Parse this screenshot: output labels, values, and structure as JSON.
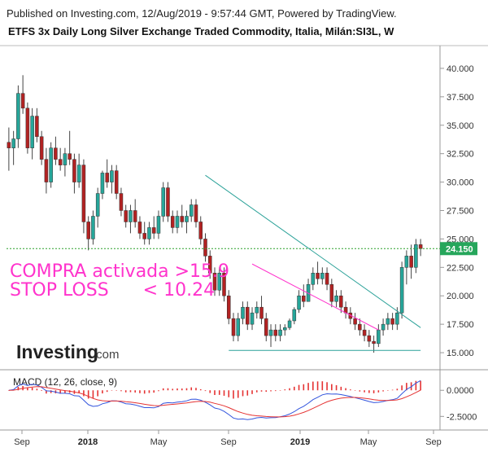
{
  "header": {
    "published": "Published on Investing.com, 12/Aug/2019 - 9:57:44 GMT, Powered by TradingView.",
    "title": "ETFS 3x Daily Long Silver Exchange Traded Commodity, Italia, Milán:SI3L, W"
  },
  "logo": {
    "main": "Investing",
    "suffix": ".com"
  },
  "annotations": {
    "buy": "COMPRA activada >15.9",
    "stop": "STOP LOSS      < 10.24"
  },
  "price_label": "24.150",
  "colors": {
    "up": "#26a69a",
    "down": "#b22222",
    "trend": "#2aa198",
    "pink": "#ff33cc",
    "dotted": "#2ca02c",
    "macd": "#3355dd",
    "signal": "#e53333",
    "hist": "#e53333"
  },
  "chart_data": [
    {
      "type": "candlestick",
      "ylim": [
        13.5,
        42.0
      ],
      "x_ticks": [
        "Sep",
        "2018",
        "May",
        "Sep",
        "2019",
        "May",
        "Sep"
      ],
      "y_ticks": [
        "15.000",
        "17.500",
        "20.000",
        "22.500",
        "25.000",
        "27.500",
        "30.000",
        "32.500",
        "35.000",
        "37.500",
        "40.000"
      ],
      "y_tick_values": [
        15,
        17.5,
        20,
        22.5,
        25,
        27.5,
        30,
        32.5,
        35,
        37.5,
        40
      ],
      "last_price": 24.15,
      "candles": [
        [
          33.5,
          34.8,
          31.0,
          33.0
        ],
        [
          33.0,
          34.5,
          31.5,
          33.8
        ],
        [
          33.8,
          38.5,
          33.0,
          37.8
        ],
        [
          37.8,
          39.4,
          36.0,
          36.5
        ],
        [
          36.5,
          37.0,
          32.5,
          33.0
        ],
        [
          33.0,
          36.5,
          32.0,
          35.8
        ],
        [
          35.8,
          36.5,
          33.5,
          34.0
        ],
        [
          34.0,
          34.5,
          31.5,
          32.0
        ],
        [
          32.0,
          33.0,
          29.0,
          30.0
        ],
        [
          30.0,
          33.5,
          29.5,
          33.0
        ],
        [
          33.0,
          34.0,
          31.5,
          32.0
        ],
        [
          32.0,
          33.0,
          31.0,
          31.5
        ],
        [
          31.5,
          33.0,
          30.5,
          32.5
        ],
        [
          32.5,
          34.5,
          31.5,
          32.0
        ],
        [
          32.0,
          32.5,
          29.0,
          30.0
        ],
        [
          30.0,
          32.5,
          29.5,
          31.5
        ],
        [
          31.5,
          32.0,
          25.5,
          26.5
        ],
        [
          26.5,
          27.0,
          24.0,
          25.0
        ],
        [
          25.0,
          27.5,
          24.5,
          27.0
        ],
        [
          27.0,
          29.5,
          26.0,
          29.0
        ],
        [
          29.0,
          31.0,
          28.5,
          30.8
        ],
        [
          30.8,
          32.0,
          29.5,
          30.0
        ],
        [
          30.0,
          31.5,
          29.0,
          31.0
        ],
        [
          31.0,
          31.5,
          28.5,
          29.0
        ],
        [
          29.0,
          29.5,
          27.0,
          27.5
        ],
        [
          27.5,
          28.0,
          26.0,
          26.5
        ],
        [
          26.5,
          28.0,
          25.5,
          27.5
        ],
        [
          27.5,
          28.5,
          26.0,
          26.5
        ],
        [
          26.5,
          27.0,
          25.0,
          25.5
        ],
        [
          25.5,
          26.5,
          24.5,
          25.0
        ],
        [
          25.0,
          26.5,
          24.5,
          26.0
        ],
        [
          26.0,
          27.0,
          25.0,
          25.5
        ],
        [
          25.5,
          27.5,
          25.0,
          27.0
        ],
        [
          27.0,
          30.0,
          26.5,
          29.5
        ],
        [
          29.5,
          30.0,
          26.5,
          27.0
        ],
        [
          27.0,
          27.5,
          25.5,
          26.0
        ],
        [
          26.0,
          27.5,
          25.5,
          27.0
        ],
        [
          27.0,
          28.0,
          26.0,
          26.5
        ],
        [
          26.5,
          27.5,
          25.5,
          27.0
        ],
        [
          27.0,
          28.5,
          26.5,
          28.0
        ],
        [
          28.0,
          28.5,
          26.0,
          26.5
        ],
        [
          26.5,
          27.0,
          24.5,
          25.0
        ],
        [
          25.0,
          25.5,
          23.0,
          23.5
        ],
        [
          23.5,
          24.0,
          21.5,
          22.0
        ],
        [
          22.0,
          22.5,
          20.0,
          20.5
        ],
        [
          20.5,
          22.5,
          20.0,
          22.0
        ],
        [
          22.0,
          22.5,
          19.5,
          20.0
        ],
        [
          20.0,
          20.5,
          17.5,
          18.0
        ],
        [
          18.0,
          18.5,
          16.0,
          16.5
        ],
        [
          16.5,
          18.5,
          16.0,
          18.0
        ],
        [
          18.0,
          19.5,
          17.5,
          19.0
        ],
        [
          19.0,
          19.5,
          17.0,
          17.5
        ],
        [
          17.5,
          19.0,
          17.0,
          18.5
        ],
        [
          18.5,
          19.5,
          18.0,
          19.0
        ],
        [
          19.0,
          20.0,
          17.5,
          18.0
        ],
        [
          18.0,
          18.5,
          16.0,
          16.5
        ],
        [
          16.5,
          17.5,
          15.5,
          17.0
        ],
        [
          17.0,
          17.5,
          16.0,
          16.5
        ],
        [
          16.5,
          17.5,
          16.0,
          17.0
        ],
        [
          17.0,
          17.5,
          16.5,
          17.2
        ],
        [
          17.2,
          18.0,
          17.0,
          17.8
        ],
        [
          17.8,
          19.0,
          17.5,
          18.8
        ],
        [
          18.8,
          20.5,
          18.5,
          20.0
        ],
        [
          20.0,
          21.0,
          19.0,
          19.5
        ],
        [
          19.5,
          21.5,
          19.5,
          21.0
        ],
        [
          21.0,
          22.5,
          20.5,
          22.0
        ],
        [
          22.0,
          23.0,
          21.0,
          21.5
        ],
        [
          21.5,
          22.5,
          21.0,
          22.0
        ],
        [
          22.0,
          22.5,
          20.5,
          21.0
        ],
        [
          21.0,
          21.5,
          19.0,
          19.5
        ],
        [
          19.5,
          20.5,
          19.0,
          20.0
        ],
        [
          20.0,
          20.5,
          18.5,
          19.0
        ],
        [
          19.0,
          19.5,
          18.0,
          18.5
        ],
        [
          18.5,
          19.0,
          17.5,
          18.0
        ],
        [
          18.0,
          18.5,
          17.0,
          17.5
        ],
        [
          17.5,
          18.0,
          16.5,
          17.0
        ],
        [
          17.0,
          17.5,
          16.0,
          16.5
        ],
        [
          16.5,
          17.0,
          15.5,
          16.0
        ],
        [
          16.0,
          16.5,
          15.0,
          15.8
        ],
        [
          15.8,
          17.5,
          15.5,
          17.0
        ],
        [
          17.0,
          18.0,
          16.5,
          17.5
        ],
        [
          17.5,
          18.5,
          17.0,
          18.0
        ],
        [
          18.0,
          18.5,
          17.0,
          17.5
        ],
        [
          17.5,
          19.0,
          17.0,
          18.5
        ],
        [
          18.5,
          23.0,
          18.0,
          22.5
        ],
        [
          22.5,
          24.0,
          21.0,
          23.5
        ],
        [
          23.5,
          24.5,
          21.5,
          22.5
        ],
        [
          22.5,
          25.0,
          22.0,
          24.5
        ],
        [
          24.5,
          25.0,
          23.5,
          24.15
        ]
      ],
      "lines": {
        "resistance": {
          "from": [
            42,
            30.6
          ],
          "to": [
            88,
            17.2
          ]
        },
        "pink_trend": {
          "from": [
            52,
            22.8
          ],
          "to": [
            79,
            17.0
          ]
        },
        "support": {
          "from": [
            47,
            15.2
          ],
          "to": [
            88,
            15.2
          ]
        }
      }
    },
    {
      "type": "macd",
      "title": "MACD (12, 26, close, 9)",
      "ylim": [
        -3.8,
        1.5
      ],
      "y_ticks": [
        "0.0000",
        "-2.5000"
      ],
      "y_tick_values": [
        0,
        -2.5
      ]
    }
  ]
}
